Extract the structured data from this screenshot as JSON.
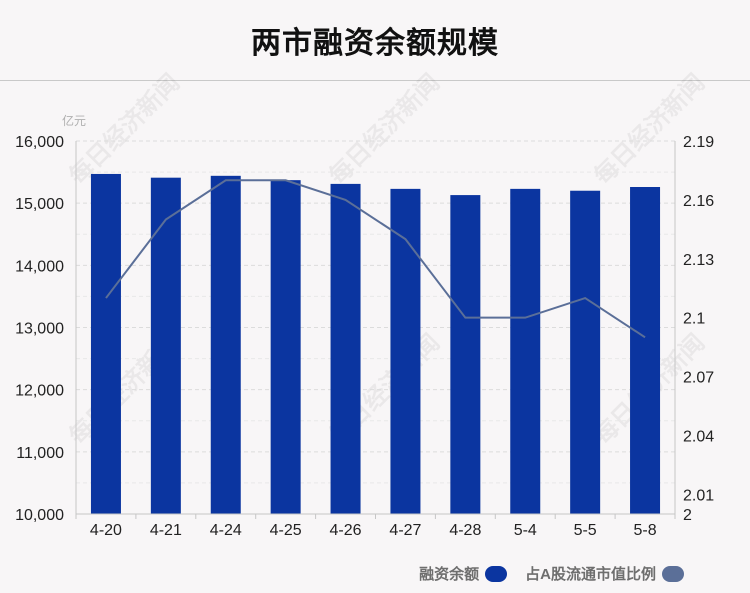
{
  "title": "两市融资余额规模",
  "watermark": "每日经济新闻",
  "colors": {
    "bar": "#0b35a0",
    "line": "#5b6f98",
    "grid": "#dcdcdc",
    "axis": "#c6c6c6",
    "text": "#222222",
    "unit_text": "#b0b0b0"
  },
  "legend": [
    {
      "label": "融资余额",
      "color": "#0b35a0"
    },
    {
      "label": "占A股流通市值比例",
      "color": "#5b6f98"
    }
  ],
  "chart_data": {
    "type": "bar",
    "categories": [
      "4-20",
      "4-21",
      "4-24",
      "4-25",
      "4-26",
      "4-27",
      "4-28",
      "5-4",
      "5-5",
      "5-8"
    ],
    "series": [
      {
        "name": "融资余额",
        "type": "bar",
        "axis": "left",
        "values": [
          15470,
          15410,
          15440,
          15370,
          15310,
          15230,
          15130,
          15230,
          15200,
          15260
        ]
      },
      {
        "name": "占A股流通市值比例",
        "type": "line",
        "axis": "right",
        "values": [
          2.11,
          2.15,
          2.17,
          2.17,
          2.16,
          2.14,
          2.1,
          2.1,
          2.11,
          2.09
        ]
      }
    ],
    "y_left": {
      "unit": "亿元",
      "ylim": [
        10000,
        16000
      ],
      "ticks": [
        "10,000",
        "11,000",
        "12,000",
        "13,000",
        "14,000",
        "15,000",
        "16,000"
      ]
    },
    "y_right": {
      "ylim": [
        2.0,
        2.19
      ],
      "ticks": [
        {
          "value": 2.0,
          "label": "2"
        },
        {
          "value": 2.01,
          "label": "2.01"
        },
        {
          "value": 2.04,
          "label": "2.04"
        },
        {
          "value": 2.07,
          "label": "2.07"
        },
        {
          "value": 2.1,
          "label": "2.1"
        },
        {
          "value": 2.13,
          "label": "2.13"
        },
        {
          "value": 2.16,
          "label": "2.16"
        },
        {
          "value": 2.19,
          "label": "2.19"
        }
      ]
    },
    "grid": true,
    "legend_position": "bottom-right"
  }
}
